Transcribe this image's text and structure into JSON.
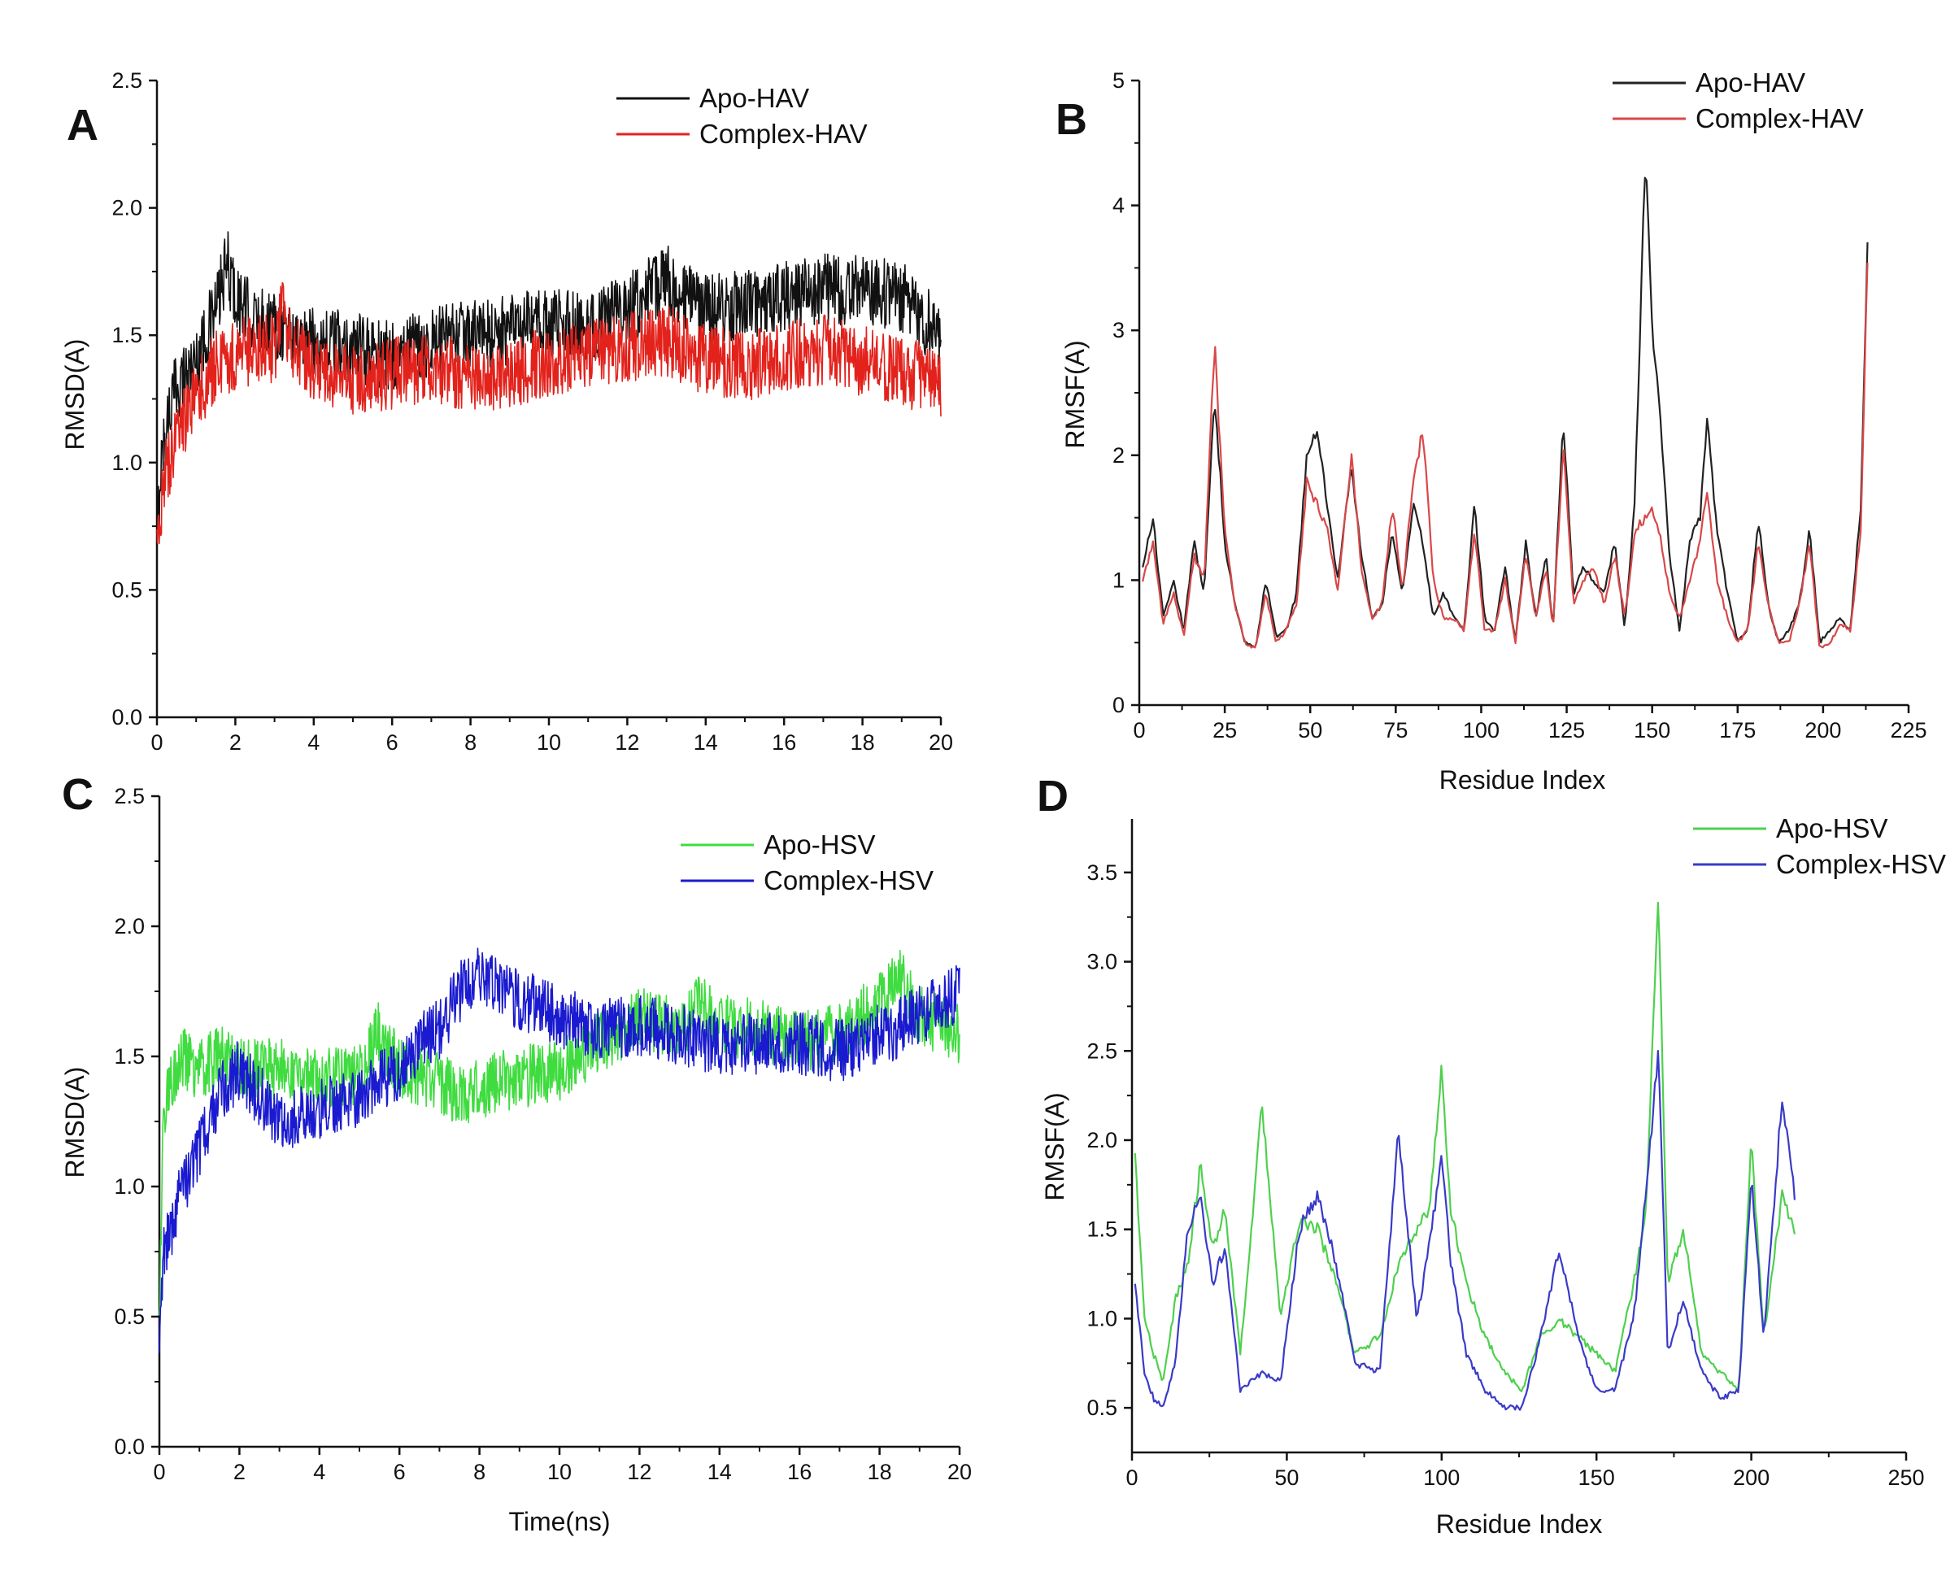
{
  "chart_data": [
    {
      "id": "A",
      "panel_label": "A",
      "type": "line",
      "title": "",
      "xlabel": "",
      "ylabel": "RMSD(A)",
      "xlim": [
        0,
        20
      ],
      "ylim": [
        0,
        2.5
      ],
      "xticks": [
        0,
        2,
        4,
        6,
        8,
        10,
        12,
        14,
        16,
        18,
        20
      ],
      "xtick_labels": [
        "0",
        "2",
        "4",
        "6",
        "8",
        "10",
        "12",
        "14",
        "16",
        "18",
        "20"
      ],
      "yticks": [
        0,
        0.5,
        1,
        1.5,
        2,
        2.5
      ],
      "ytick_labels": [
        "0.0",
        "0.5",
        "1.0",
        "1.5",
        "2.0",
        "2.5"
      ],
      "noise_amp": 0.14,
      "legend": "top-right",
      "series": [
        {
          "name": "Apo-HAV",
          "color": "#111111",
          "x": [
            0,
            0.1,
            0.3,
            0.5,
            1,
            1.5,
            1.8,
            2,
            2.5,
            3,
            3.5,
            4,
            5,
            6,
            7,
            8,
            9,
            10,
            11,
            12,
            13,
            13.5,
            14,
            15,
            16,
            17,
            18,
            19,
            20
          ],
          "y": [
            0.65,
            1.0,
            1.2,
            1.3,
            1.4,
            1.6,
            1.78,
            1.65,
            1.55,
            1.55,
            1.5,
            1.48,
            1.45,
            1.42,
            1.47,
            1.5,
            1.52,
            1.55,
            1.53,
            1.6,
            1.72,
            1.65,
            1.6,
            1.62,
            1.65,
            1.68,
            1.68,
            1.65,
            1.5
          ]
        },
        {
          "name": "Complex-HAV",
          "color": "#e3221c",
          "x": [
            0,
            0.1,
            0.3,
            0.5,
            1,
            1.5,
            2,
            2.5,
            3,
            3.2,
            3.5,
            4,
            5,
            6,
            7,
            8,
            9,
            10,
            11,
            12,
            13,
            14,
            15,
            16,
            17,
            18,
            19,
            20
          ],
          "y": [
            0.6,
            0.85,
            1.0,
            1.1,
            1.25,
            1.38,
            1.42,
            1.45,
            1.45,
            1.6,
            1.45,
            1.38,
            1.32,
            1.35,
            1.38,
            1.33,
            1.35,
            1.4,
            1.42,
            1.45,
            1.48,
            1.4,
            1.38,
            1.42,
            1.44,
            1.4,
            1.35,
            1.32
          ]
        }
      ]
    },
    {
      "id": "B",
      "panel_label": "B",
      "type": "line",
      "title": "",
      "xlabel": "Residue Index",
      "ylabel": "RMSF(A)",
      "xlim": [
        0,
        225
      ],
      "ylim": [
        0,
        5
      ],
      "xticks": [
        0,
        25,
        50,
        75,
        100,
        125,
        150,
        175,
        200,
        225
      ],
      "xtick_labels": [
        "0",
        "25",
        "50",
        "75",
        "100",
        "125",
        "150",
        "175",
        "200",
        "225"
      ],
      "yticks": [
        0,
        1,
        2,
        3,
        4,
        5
      ],
      "ytick_labels": [
        "0",
        "1",
        "2",
        "3",
        "4",
        "5"
      ],
      "noise_amp": 0.05,
      "legend": "top-right",
      "series": [
        {
          "name": "Apo-HAV",
          "color": "#222222",
          "x": [
            1,
            4,
            7,
            10,
            13,
            16,
            19,
            22,
            25,
            28,
            31,
            34,
            37,
            40,
            43,
            46,
            49,
            52,
            55,
            58,
            62,
            65,
            68,
            71,
            74,
            77,
            80,
            83,
            86,
            89,
            92,
            95,
            98,
            101,
            104,
            107,
            110,
            113,
            116,
            119,
            121,
            124,
            127,
            130,
            133,
            136,
            139,
            142,
            145,
            148,
            150,
            152,
            155,
            158,
            161,
            164,
            166,
            169,
            172,
            175,
            178,
            181,
            184,
            187,
            190,
            193,
            196,
            199,
            202,
            205,
            208,
            211,
            213
          ],
          "y": [
            1.1,
            1.5,
            0.7,
            1.0,
            0.6,
            1.3,
            0.9,
            2.5,
            1.3,
            0.8,
            0.5,
            0.45,
            1.0,
            0.55,
            0.6,
            0.9,
            2.0,
            2.2,
            1.6,
            1.0,
            1.9,
            1.2,
            0.7,
            0.8,
            1.4,
            0.9,
            1.6,
            1.3,
            0.7,
            0.9,
            0.7,
            0.6,
            1.6,
            0.7,
            0.6,
            1.1,
            0.5,
            1.3,
            0.7,
            1.2,
            0.6,
            2.3,
            0.9,
            1.1,
            1.0,
            0.9,
            1.3,
            0.6,
            1.7,
            4.4,
            3.0,
            2.5,
            1.2,
            0.6,
            1.3,
            1.5,
            2.3,
            1.4,
            0.9,
            0.5,
            0.6,
            1.5,
            0.8,
            0.5,
            0.6,
            0.8,
            1.4,
            0.5,
            0.6,
            0.7,
            0.6,
            1.6,
            3.7
          ]
        },
        {
          "name": "Complex-HAV",
          "color": "#d84848",
          "x": [
            1,
            4,
            7,
            10,
            13,
            16,
            19,
            22,
            25,
            28,
            31,
            34,
            37,
            40,
            43,
            46,
            49,
            52,
            55,
            58,
            62,
            65,
            68,
            71,
            74,
            77,
            80,
            83,
            86,
            89,
            92,
            95,
            98,
            101,
            104,
            107,
            110,
            113,
            116,
            119,
            121,
            124,
            127,
            130,
            133,
            136,
            139,
            142,
            145,
            148,
            150,
            152,
            155,
            158,
            161,
            164,
            166,
            169,
            172,
            175,
            178,
            181,
            184,
            187,
            190,
            193,
            196,
            199,
            202,
            205,
            208,
            211,
            213
          ],
          "y": [
            1.0,
            1.3,
            0.65,
            0.9,
            0.55,
            1.2,
            1.0,
            2.9,
            1.4,
            0.8,
            0.5,
            0.45,
            0.9,
            0.5,
            0.6,
            0.8,
            1.8,
            1.6,
            1.4,
            0.9,
            2.0,
            1.1,
            0.7,
            0.8,
            1.6,
            0.9,
            1.8,
            2.2,
            1.0,
            0.7,
            0.7,
            0.6,
            1.4,
            0.6,
            0.6,
            1.0,
            0.5,
            1.2,
            0.7,
            1.1,
            0.6,
            2.1,
            0.8,
            1.0,
            1.1,
            0.8,
            1.2,
            0.7,
            1.4,
            1.5,
            1.55,
            1.4,
            0.9,
            0.7,
            1.0,
            1.3,
            1.7,
            1.0,
            0.7,
            0.5,
            0.6,
            1.3,
            0.8,
            0.5,
            0.5,
            0.8,
            1.3,
            0.45,
            0.5,
            0.65,
            0.6,
            1.4,
            3.6
          ]
        }
      ]
    },
    {
      "id": "C",
      "panel_label": "C",
      "type": "line",
      "title": "",
      "xlabel": "Time(ns)",
      "ylabel": "RMSD(A)",
      "xlim": [
        0,
        20
      ],
      "ylim": [
        0,
        2.5
      ],
      "xticks": [
        0,
        2,
        4,
        6,
        8,
        10,
        12,
        14,
        16,
        18,
        20
      ],
      "xtick_labels": [
        "0",
        "2",
        "4",
        "6",
        "8",
        "10",
        "12",
        "14",
        "16",
        "18",
        "20"
      ],
      "yticks": [
        0,
        0.5,
        1,
        1.5,
        2,
        2.5
      ],
      "ytick_labels": [
        "0.0",
        "0.5",
        "1.0",
        "1.5",
        "2.0",
        "2.5"
      ],
      "noise_amp": 0.12,
      "legend": "top-right",
      "series": [
        {
          "name": "Apo-HSV",
          "color": "#3fdc3f",
          "x": [
            0,
            0.1,
            0.3,
            0.5,
            1,
            1.5,
            2,
            3,
            4,
            5,
            5.5,
            6,
            7,
            7.5,
            8,
            9,
            10,
            11,
            12,
            13,
            13.5,
            14,
            15,
            16,
            17,
            18,
            18.5,
            19,
            20
          ],
          "y": [
            0.5,
            1.3,
            1.4,
            1.5,
            1.45,
            1.5,
            1.45,
            1.45,
            1.42,
            1.42,
            1.6,
            1.45,
            1.4,
            1.35,
            1.38,
            1.42,
            1.45,
            1.55,
            1.65,
            1.6,
            1.7,
            1.62,
            1.6,
            1.55,
            1.6,
            1.7,
            1.8,
            1.65,
            1.58
          ]
        },
        {
          "name": "Complex-HSV",
          "color": "#1a1ad0",
          "x": [
            0,
            0.1,
            0.3,
            0.5,
            1,
            1.5,
            2,
            2.5,
            3,
            4,
            5,
            6,
            6.5,
            7,
            7.5,
            8,
            9,
            10,
            11,
            12,
            13,
            14,
            15,
            16,
            17,
            18,
            19,
            20
          ],
          "y": [
            0.4,
            0.75,
            0.85,
            0.95,
            1.15,
            1.35,
            1.45,
            1.35,
            1.25,
            1.3,
            1.35,
            1.45,
            1.55,
            1.6,
            1.75,
            1.8,
            1.72,
            1.65,
            1.6,
            1.62,
            1.58,
            1.55,
            1.55,
            1.55,
            1.52,
            1.58,
            1.65,
            1.75
          ]
        }
      ]
    },
    {
      "id": "D",
      "panel_label": "D",
      "type": "line",
      "title": "",
      "xlabel": "Residue Index",
      "ylabel": "RMSF(A)",
      "xlim": [
        0,
        250
      ],
      "ylim": [
        0.25,
        3.8
      ],
      "xticks": [
        0,
        50,
        100,
        150,
        200,
        250
      ],
      "xtick_labels": [
        "0",
        "50",
        "100",
        "150",
        "200",
        "250"
      ],
      "yticks": [
        0.5,
        1,
        1.5,
        2,
        2.5,
        3,
        3.5
      ],
      "ytick_labels": [
        "0.5",
        "1.0",
        "1.5",
        "2.0",
        "2.5",
        "3.0",
        "3.5"
      ],
      "noise_amp": 0.05,
      "legend": "top-right",
      "series": [
        {
          "name": "Apo-HSV",
          "color": "#4fd04f",
          "x": [
            1,
            4,
            7,
            10,
            14,
            18,
            22,
            26,
            30,
            35,
            42,
            48,
            54,
            60,
            66,
            72,
            80,
            86,
            92,
            96,
            100,
            103,
            108,
            114,
            120,
            126,
            132,
            138,
            144,
            150,
            156,
            162,
            166,
            170,
            173,
            178,
            184,
            190,
            196,
            200,
            204,
            210,
            214
          ],
          "y": [
            1.9,
            1.0,
            0.8,
            0.65,
            1.1,
            1.3,
            1.85,
            1.4,
            1.6,
            0.8,
            2.2,
            1.0,
            1.55,
            1.5,
            1.2,
            0.8,
            0.9,
            1.3,
            1.5,
            1.6,
            2.4,
            1.6,
            1.2,
            0.9,
            0.7,
            0.6,
            0.9,
            1.0,
            0.9,
            0.8,
            0.7,
            1.2,
            1.6,
            3.4,
            1.2,
            1.5,
            0.8,
            0.7,
            0.6,
            2.0,
            0.9,
            1.7,
            1.5
          ]
        },
        {
          "name": "Complex-HSV",
          "color": "#3a3ac8",
          "x": [
            1,
            4,
            7,
            10,
            14,
            18,
            22,
            26,
            30,
            35,
            42,
            48,
            54,
            60,
            66,
            72,
            80,
            86,
            92,
            96,
            100,
            103,
            108,
            114,
            120,
            126,
            132,
            138,
            144,
            150,
            156,
            162,
            166,
            170,
            173,
            178,
            184,
            190,
            196,
            200,
            204,
            210,
            214
          ],
          "y": [
            1.2,
            0.7,
            0.55,
            0.5,
            0.75,
            1.5,
            1.7,
            1.2,
            1.4,
            0.6,
            0.7,
            0.65,
            1.5,
            1.7,
            1.3,
            0.75,
            0.7,
            2.05,
            1.0,
            1.4,
            1.9,
            1.3,
            0.8,
            0.6,
            0.5,
            0.5,
            0.9,
            1.4,
            0.9,
            0.6,
            0.6,
            1.0,
            1.7,
            2.5,
            0.8,
            1.1,
            0.7,
            0.55,
            0.6,
            1.8,
            0.9,
            2.25,
            1.7
          ]
        }
      ]
    }
  ]
}
